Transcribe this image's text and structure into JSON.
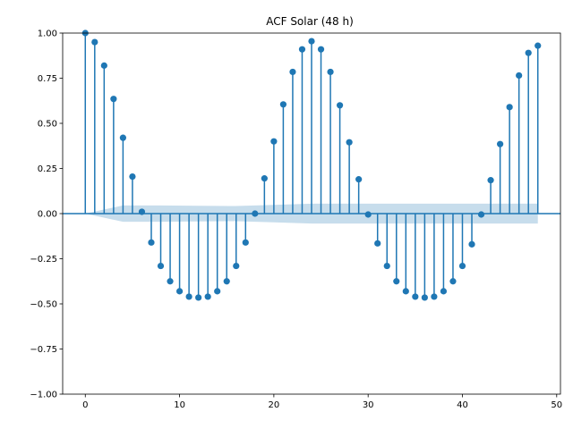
{
  "chart_data": {
    "type": "stem",
    "title": "ACF Solar (48 h)",
    "xlabel": "",
    "ylabel": "",
    "xlim": [
      -2.4,
      50.4
    ],
    "ylim": [
      -1.0,
      1.0
    ],
    "xticks": [
      0,
      10,
      20,
      30,
      40,
      50
    ],
    "yticks": [
      -1.0,
      -0.75,
      -0.5,
      -0.25,
      0.0,
      0.25,
      0.5,
      0.75,
      1.0
    ],
    "ytick_labels": [
      "−1.00",
      "−0.75",
      "−0.50",
      "−0.25",
      "0.00",
      "0.25",
      "0.50",
      "0.75",
      "1.00"
    ],
    "grid": false,
    "series": [
      {
        "color": "#1f77b4",
        "x": [
          0,
          1,
          2,
          3,
          4,
          5,
          6,
          7,
          8,
          9,
          10,
          11,
          12,
          13,
          14,
          15,
          16,
          17,
          18,
          19,
          20,
          21,
          22,
          23,
          24,
          25,
          26,
          27,
          28,
          29,
          30,
          31,
          32,
          33,
          34,
          35,
          36,
          37,
          38,
          39,
          40,
          41,
          42,
          43,
          44,
          45,
          46,
          47,
          48
        ],
        "values": [
          1.0,
          0.95,
          0.82,
          0.635,
          0.42,
          0.205,
          0.01,
          -0.16,
          -0.29,
          -0.375,
          -0.43,
          -0.46,
          -0.465,
          -0.46,
          -0.43,
          -0.375,
          -0.29,
          -0.16,
          0.0,
          0.195,
          0.4,
          0.605,
          0.785,
          0.91,
          0.955,
          0.91,
          0.785,
          0.6,
          0.395,
          0.19,
          -0.005,
          -0.165,
          -0.29,
          -0.375,
          -0.43,
          -0.46,
          -0.465,
          -0.46,
          -0.43,
          -0.375,
          -0.29,
          -0.17,
          -0.005,
          0.185,
          0.385,
          0.59,
          0.765,
          0.89,
          0.93
        ]
      }
    ],
    "confidence_band": {
      "color": "#1f77b4",
      "x": [
        0,
        4,
        8,
        12,
        16,
        20,
        24,
        28,
        32,
        36,
        40,
        44,
        48
      ],
      "upper": [
        0.0,
        0.045,
        0.045,
        0.043,
        0.042,
        0.048,
        0.055,
        0.055,
        0.055,
        0.055,
        0.055,
        0.055,
        0.055
      ],
      "lower": [
        0.0,
        -0.045,
        -0.045,
        -0.043,
        -0.042,
        -0.048,
        -0.055,
        -0.055,
        -0.055,
        -0.055,
        -0.055,
        -0.055,
        -0.055
      ]
    },
    "zero_line": 0.0
  }
}
